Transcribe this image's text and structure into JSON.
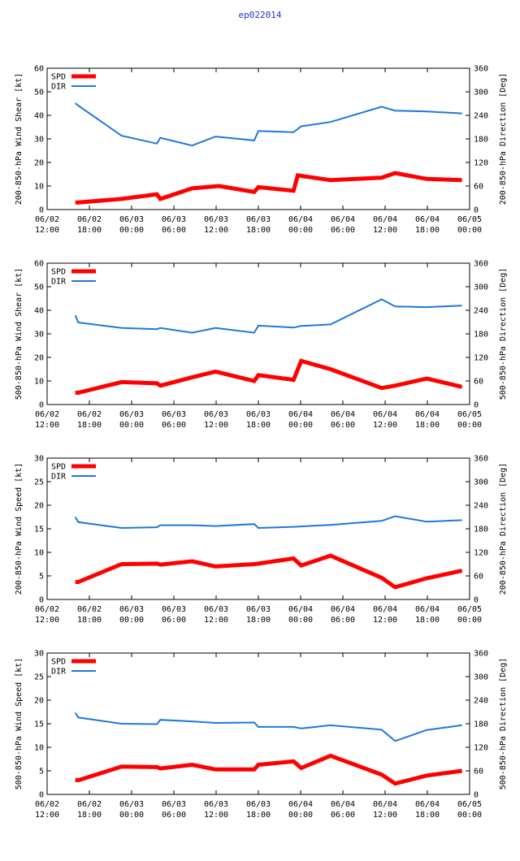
{
  "title": "ep022014",
  "colors": {
    "spd": "#ff0000",
    "dir": "#1e78dc",
    "axis": "#000000"
  },
  "chart_data": [
    {
      "type": "line",
      "ylabel": "200-850-hPa Wind Shear [kt]",
      "y2label": "200-850-hPa Direction [Deg]",
      "ylim": [
        0,
        60
      ],
      "y2lim": [
        0,
        360
      ],
      "yticks": [
        "0",
        "10",
        "20",
        "30",
        "40",
        "50",
        "60"
      ],
      "y2ticks": [
        "0",
        "60",
        "120",
        "180",
        "240",
        "300",
        "360"
      ],
      "xlim": [
        0,
        72
      ],
      "xticks": [
        {
          "top": "06/02",
          "bottom": "12:00"
        },
        {
          "top": "06/02",
          "bottom": "18:00"
        },
        {
          "top": "06/03",
          "bottom": "00:00"
        },
        {
          "top": "06/03",
          "bottom": "06:00"
        },
        {
          "top": "06/03",
          "bottom": "12:00"
        },
        {
          "top": "06/03",
          "bottom": "18:00"
        },
        {
          "top": "06/04",
          "bottom": "00:00"
        },
        {
          "top": "06/04",
          "bottom": "06:00"
        },
        {
          "top": "06/04",
          "bottom": "12:00"
        },
        {
          "top": "06/04",
          "bottom": "18:00"
        },
        {
          "top": "06/05",
          "bottom": "00:00"
        }
      ],
      "legend": [
        "SPD",
        "DIR"
      ],
      "series": [
        {
          "name": "SPD",
          "axis": "left",
          "x": [
            4.8,
            5.3,
            12.7,
            18.7,
            19.3,
            24.7,
            29.3,
            35.3,
            36,
            42,
            42.7,
            48.3,
            57,
            59.3,
            64.7,
            70.7
          ],
          "values": [
            3,
            3,
            4.5,
            6.5,
            4.5,
            9,
            10,
            7.5,
            9.5,
            8,
            14.5,
            12.5,
            13.5,
            15.5,
            13,
            12.5
          ]
        },
        {
          "name": "DIR",
          "axis": "right",
          "x": [
            4.8,
            5.3,
            12.7,
            18.7,
            19.3,
            24.7,
            28.7,
            35.3,
            36,
            42,
            43.3,
            48.3,
            57,
            59.3,
            64.7,
            70.7
          ],
          "values": [
            271,
            265,
            188,
            168,
            183,
            163,
            186,
            176,
            200,
            197,
            212,
            223,
            262,
            252,
            250,
            245
          ]
        }
      ]
    },
    {
      "type": "line",
      "ylabel": "500-850-hPa Wind Shear [kt]",
      "y2label": "500-850-hPa Direction [Deg]",
      "ylim": [
        0,
        60
      ],
      "y2lim": [
        0,
        360
      ],
      "yticks": [
        "0",
        "10",
        "20",
        "30",
        "40",
        "50",
        "60"
      ],
      "y2ticks": [
        "0",
        "60",
        "120",
        "180",
        "240",
        "300",
        "360"
      ],
      "xlim": [
        0,
        72
      ],
      "xticks": [
        {
          "top": "06/02",
          "bottom": "12:00"
        },
        {
          "top": "06/02",
          "bottom": "18:00"
        },
        {
          "top": "06/03",
          "bottom": "00:00"
        },
        {
          "top": "06/03",
          "bottom": "06:00"
        },
        {
          "top": "06/03",
          "bottom": "12:00"
        },
        {
          "top": "06/03",
          "bottom": "18:00"
        },
        {
          "top": "06/04",
          "bottom": "00:00"
        },
        {
          "top": "06/04",
          "bottom": "06:00"
        },
        {
          "top": "06/04",
          "bottom": "12:00"
        },
        {
          "top": "06/04",
          "bottom": "18:00"
        },
        {
          "top": "06/05",
          "bottom": "00:00"
        }
      ],
      "legend": [
        "SPD",
        "DIR"
      ],
      "series": [
        {
          "name": "SPD",
          "axis": "left",
          "x": [
            4.8,
            5.3,
            12.7,
            18.7,
            19.3,
            24.7,
            28.7,
            35.3,
            36,
            42,
            43.3,
            48.3,
            57,
            59.3,
            64.7,
            70.7
          ],
          "values": [
            5,
            5,
            9.5,
            9,
            8,
            11.5,
            14,
            10,
            12.5,
            10.5,
            18.5,
            15,
            7,
            8,
            11,
            7.5
          ]
        },
        {
          "name": "DIR",
          "axis": "right",
          "x": [
            4.8,
            5.3,
            12.7,
            18.7,
            19.3,
            24.7,
            28.7,
            35.3,
            36,
            42,
            43.3,
            48.3,
            57,
            59.3,
            64.7,
            70.7
          ],
          "values": [
            227,
            209,
            195,
            192,
            195,
            183,
            195,
            183,
            201,
            196,
            200,
            204,
            268,
            250,
            248,
            252
          ]
        }
      ]
    },
    {
      "type": "line",
      "ylabel": "200-850-hPa Wind Speed [kt]",
      "y2label": "200-850-hPa Direction [Deg]",
      "ylim": [
        0,
        30
      ],
      "y2lim": [
        0,
        360
      ],
      "yticks": [
        "0",
        "5",
        "10",
        "15",
        "20",
        "25",
        "30"
      ],
      "y2ticks": [
        "0",
        "60",
        "120",
        "180",
        "240",
        "300",
        "360"
      ],
      "xlim": [
        0,
        72
      ],
      "xticks": [
        {
          "top": "06/02",
          "bottom": "12:00"
        },
        {
          "top": "06/02",
          "bottom": "18:00"
        },
        {
          "top": "06/03",
          "bottom": "00:00"
        },
        {
          "top": "06/03",
          "bottom": "06:00"
        },
        {
          "top": "06/03",
          "bottom": "12:00"
        },
        {
          "top": "06/03",
          "bottom": "18:00"
        },
        {
          "top": "06/04",
          "bottom": "00:00"
        },
        {
          "top": "06/04",
          "bottom": "06:00"
        },
        {
          "top": "06/04",
          "bottom": "12:00"
        },
        {
          "top": "06/04",
          "bottom": "18:00"
        },
        {
          "top": "06/05",
          "bottom": "00:00"
        }
      ],
      "legend": [
        "SPD",
        "DIR"
      ],
      "series": [
        {
          "name": "SPD",
          "axis": "left",
          "x": [
            4.8,
            5.3,
            12.7,
            18.7,
            19.3,
            24.7,
            28.7,
            35.3,
            36,
            42,
            43.3,
            48.3,
            57,
            59.3,
            64.7,
            70.7
          ],
          "values": [
            3.7,
            3.7,
            7.5,
            7.6,
            7.4,
            8.1,
            7,
            7.5,
            7.6,
            8.7,
            7.2,
            9.3,
            4.6,
            2.6,
            4.5,
            6.1
          ]
        },
        {
          "name": "DIR",
          "axis": "right",
          "x": [
            4.8,
            5.3,
            12.7,
            18.7,
            19.3,
            24.7,
            28.7,
            35.3,
            36,
            42,
            43.3,
            48.3,
            57,
            59.3,
            64.7,
            70.7
          ],
          "values": [
            210,
            197,
            182,
            184,
            189,
            189,
            187,
            192,
            182,
            185,
            186,
            190,
            200,
            212,
            198,
            202
          ]
        }
      ]
    },
    {
      "type": "line",
      "ylabel": "500-850-hPa Wind Speed [kt]",
      "y2label": "500-850-hPa Direction [Deg]",
      "ylim": [
        0,
        30
      ],
      "y2lim": [
        0,
        360
      ],
      "yticks": [
        "0",
        "5",
        "10",
        "15",
        "20",
        "25",
        "30"
      ],
      "y2ticks": [
        "0",
        "60",
        "120",
        "180",
        "240",
        "300",
        "360"
      ],
      "xlim": [
        0,
        72
      ],
      "xticks": [
        {
          "top": "06/02",
          "bottom": "12:00"
        },
        {
          "top": "06/02",
          "bottom": "18:00"
        },
        {
          "top": "06/03",
          "bottom": "00:00"
        },
        {
          "top": "06/03",
          "bottom": "06:00"
        },
        {
          "top": "06/03",
          "bottom": "12:00"
        },
        {
          "top": "06/03",
          "bottom": "18:00"
        },
        {
          "top": "06/04",
          "bottom": "00:00"
        },
        {
          "top": "06/04",
          "bottom": "06:00"
        },
        {
          "top": "06/04",
          "bottom": "12:00"
        },
        {
          "top": "06/04",
          "bottom": "18:00"
        },
        {
          "top": "06/05",
          "bottom": "00:00"
        }
      ],
      "legend": [
        "SPD",
        "DIR"
      ],
      "series": [
        {
          "name": "SPD",
          "axis": "left",
          "x": [
            4.8,
            5.3,
            12.7,
            18.7,
            19.3,
            24.7,
            28.7,
            35.3,
            36,
            42,
            43.3,
            48.3,
            57,
            59.3,
            64.7,
            70.7
          ],
          "values": [
            3.1,
            3,
            5.9,
            5.8,
            5.5,
            6.3,
            5.3,
            5.3,
            6.3,
            7,
            5.6,
            8.2,
            4.2,
            2.3,
            4,
            5
          ]
        },
        {
          "name": "DIR",
          "axis": "right",
          "x": [
            4.8,
            5.3,
            12.7,
            18.7,
            19.3,
            24.7,
            28.7,
            35.3,
            36,
            42,
            43.3,
            48.3,
            57,
            59.3,
            64.7,
            70.7
          ],
          "values": [
            208,
            196,
            180,
            179,
            190,
            186,
            182,
            183,
            172,
            172,
            168,
            176,
            165,
            136,
            164,
            176
          ]
        }
      ]
    }
  ]
}
